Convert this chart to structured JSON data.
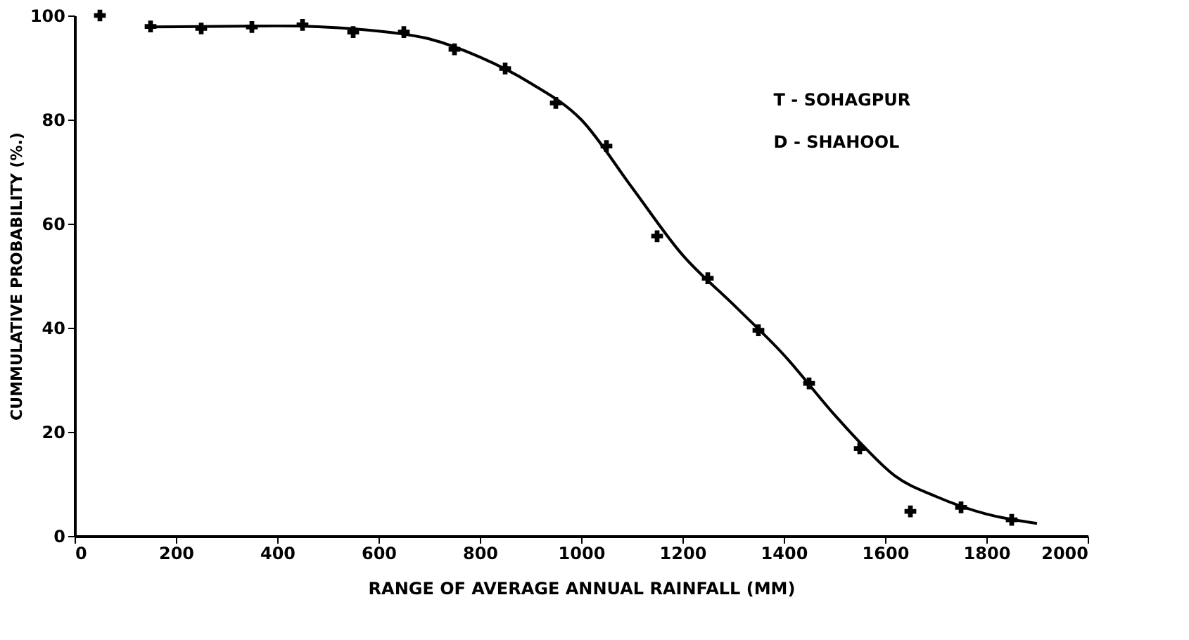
{
  "chart_data": {
    "type": "scatter",
    "xlabel": "RANGE OF AVERAGE ANNUAL RAINFALL (MM)",
    "ylabel": "CUMMULATIVE PROBABILITY (%.)",
    "x": [
      50,
      150,
      250,
      350,
      450,
      550,
      650,
      750,
      850,
      950,
      1050,
      1150,
      1250,
      1350,
      1450,
      1550,
      1650,
      1750,
      1850
    ],
    "series": [
      {
        "color": "#000000",
        "marker": "cross",
        "values": [
          100,
          97.9,
          97.5,
          97.8,
          98.2,
          96.8,
          96.8,
          93.5,
          89.8,
          83.2,
          74.9,
          57.6,
          49.5,
          39.5,
          29.3,
          16.8,
          4.7,
          5.5,
          3.1
        ]
      },
      {
        "type": "line",
        "color": "#000000",
        "marker": "none",
        "x": [
          150,
          400,
          600,
          700,
          800,
          900,
          1000,
          1100,
          1200,
          1300,
          1400,
          1500,
          1550,
          1620,
          1700,
          1800,
          1900
        ],
        "values": [
          97.8,
          98,
          97,
          95.5,
          92,
          87,
          80,
          67,
          54,
          44.5,
          34.8,
          23.3,
          18,
          11.5,
          7.6,
          4.2,
          2.4
        ]
      }
    ],
    "xlim": [
      0,
      2000
    ],
    "xticks": [
      0,
      200,
      400,
      600,
      800,
      1000,
      1200,
      1400,
      1600,
      1800,
      2000
    ],
    "ylim": [
      0,
      100
    ],
    "yticks": [
      0,
      20,
      40,
      60,
      80,
      100
    ],
    "grid": false,
    "annotations": [
      "T  -  SOHAGPUR",
      "D  -  SHAHOOL"
    ]
  }
}
